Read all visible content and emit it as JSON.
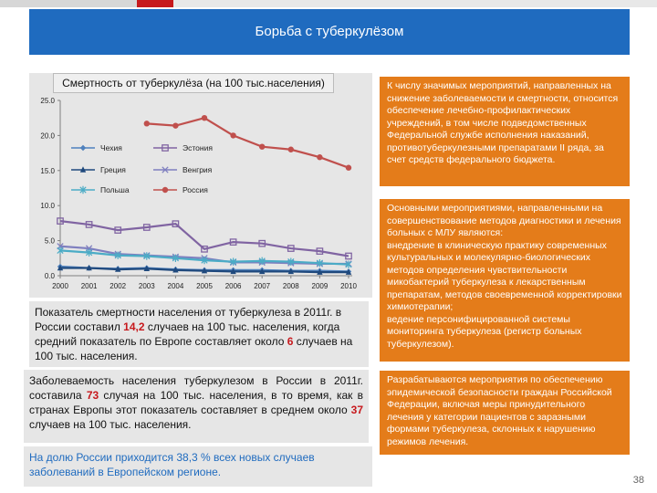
{
  "header": {
    "title": "Борьба с туберкулёзом"
  },
  "colors": {
    "header_bg": "#1f6bbf",
    "accent_orange": "#e47c1a",
    "highlight_red": "#c7191d",
    "panel_grey": "#e6e6e6"
  },
  "chart_data": {
    "type": "line",
    "title": "Смертность от туберкулёза (на 100 тыс.населения)",
    "x": [
      2000,
      2001,
      2002,
      2003,
      2004,
      2005,
      2006,
      2007,
      2008,
      2009,
      2010
    ],
    "x_tick_labels": [
      "2000",
      "2001",
      "2002",
      "2003",
      "2004",
      "2005",
      "2006",
      "2007",
      "2008",
      "2009",
      "2010"
    ],
    "ylim": [
      0,
      25
    ],
    "y_tick_labels": [
      "0.0",
      "5.0",
      "10.0",
      "15.0",
      "20.0",
      "25.0"
    ],
    "y_ticks": [
      0,
      5,
      10,
      15,
      20,
      25
    ],
    "legend_position": "top-left inside",
    "grid": false,
    "series": [
      {
        "name": "Чехия",
        "color": "#4f81bd",
        "marker": "diamond",
        "values": [
          1.3,
          1.1,
          1.0,
          1.1,
          0.9,
          0.8,
          0.8,
          0.8,
          0.7,
          0.7,
          0.6
        ]
      },
      {
        "name": "Эстония",
        "color": "#8064a2",
        "marker": "square",
        "values": [
          7.8,
          7.3,
          6.5,
          6.9,
          7.4,
          3.8,
          4.8,
          4.6,
          3.9,
          3.5,
          2.8
        ]
      },
      {
        "name": "Греция",
        "color": "#1f497d",
        "marker": "triangle",
        "values": [
          1.1,
          1.1,
          0.9,
          1.0,
          0.8,
          0.7,
          0.6,
          0.6,
          0.6,
          0.5,
          0.5
        ]
      },
      {
        "name": "Венгрия",
        "color": "#7f7fbf",
        "marker": "x",
        "values": [
          4.2,
          3.9,
          3.1,
          2.9,
          2.7,
          2.5,
          1.9,
          1.9,
          1.8,
          1.7,
          1.7
        ]
      },
      {
        "name": "Польша",
        "color": "#4bacc6",
        "marker": "star",
        "values": [
          3.6,
          3.3,
          2.9,
          2.8,
          2.5,
          2.2,
          2.0,
          2.1,
          2.0,
          1.8,
          1.6
        ]
      },
      {
        "name": "Россия",
        "color": "#c0504d",
        "marker": "circle",
        "values": [
          null,
          null,
          null,
          21.7,
          21.4,
          22.5,
          20.0,
          18.4,
          18.0,
          16.9,
          15.4
        ]
      }
    ]
  },
  "left_texts": {
    "p1_a": "Показатель смертности населения от туберкулеза в 2011г. в России составил ",
    "p1_val": "14,2",
    "p1_b": " случаев на 100 тыс. населения, когда средний показатель по Европе составляет около ",
    "p1_val2": "6",
    "p1_c": " случаев на 100 тыс. населения.",
    "p2_a": "Заболеваемость населения туберкулезом в России в 2011г. составила ",
    "p2_val": "73",
    "p2_b": " случая на 100 тыс. населения, в то время, как в странах Европы этот показатель составляет в среднем около ",
    "p2_val2": "37",
    "p2_c": " случаев на 100 тыс. населения.",
    "p3": "На долю России приходится 38,3 % всех новых случаев заболеваний в Европейском регионе."
  },
  "right_texts": {
    "box1": "К числу значимых мероприятий, направленных на снижение заболеваемости и смертности, относится обеспечение лечебно-профилактических учреждений, в том числе подведомственных Федеральной службе исполнения наказаний, противотуберкулезными препаратами II ряда, за счет средств федерального бюджета.",
    "box2_a": "Основными мероприятиями, направленными на совершенствование методов диагностики и лечения больных с МЛУ являются:",
    "box2_b": "внедрение в клиническую практику современных культуральных и молекулярно-биологических методов определения чувствительности микобактерий туберкулеза к лекарственным препаратам, методов своевременной корректировки химиотерапии;",
    "box2_c": "ведение персонифицированной системы мониторинга туберкулеза (регистр больных туберкулезом).",
    "box3": "Разрабатываются мероприятия по обеспечению эпидемической безопасности граждан Российской Федерации, включая меры принудительного лечения у категории пациентов с заразными формами туберкулеза, склонных к нарушению режимов лечения."
  },
  "page_number": "38"
}
